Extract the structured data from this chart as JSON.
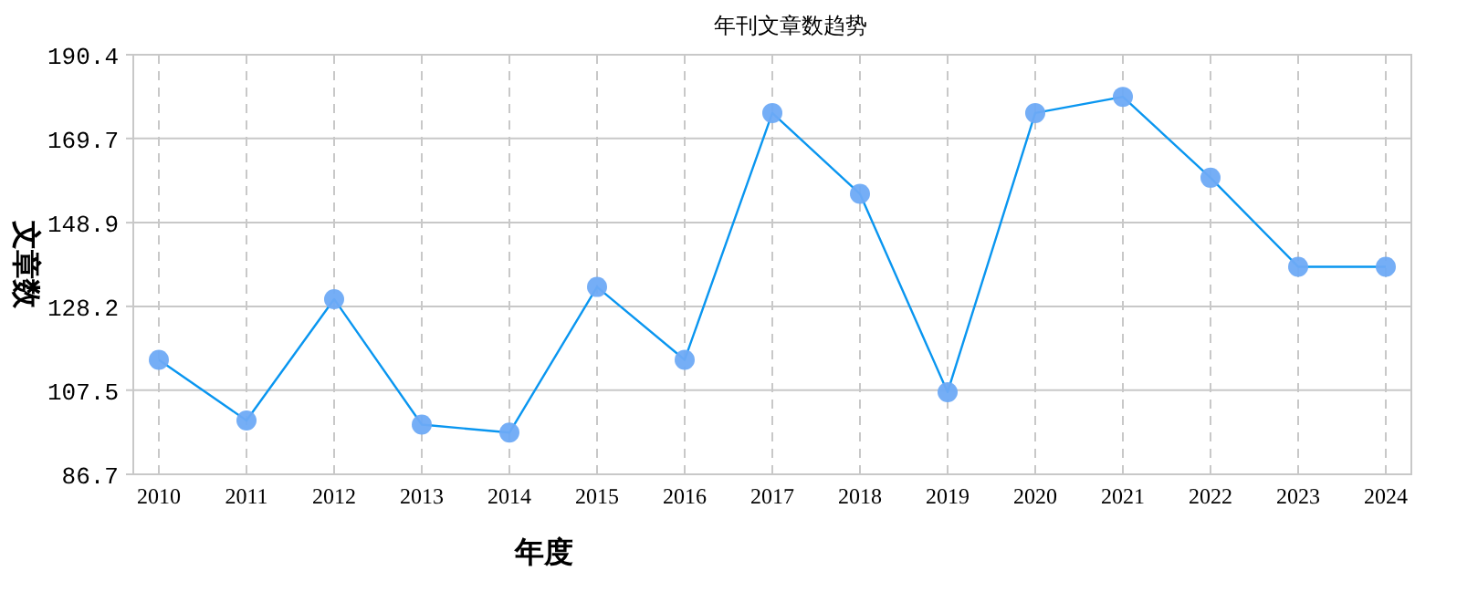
{
  "chart_data": {
    "type": "line",
    "title": "年刊文章数趋势",
    "xlabel": "年度",
    "ylabel": "文章数",
    "categories": [
      "2010",
      "2011",
      "2012",
      "2013",
      "2014",
      "2015",
      "2016",
      "2017",
      "2018",
      "2019",
      "2020",
      "2021",
      "2022",
      "2023",
      "2024"
    ],
    "series": [
      {
        "color": "#0a96f0",
        "values": [
          115,
          100,
          130,
          99,
          97,
          133,
          115,
          176,
          156,
          107,
          176,
          180,
          160,
          138,
          138
        ]
      }
    ],
    "ylim": [
      86.7,
      190.4
    ],
    "yticks": [
      86.7,
      107.5,
      128.2,
      148.9,
      169.7,
      190.4
    ],
    "grid": true,
    "marker": "circle",
    "line_style": "solid"
  }
}
